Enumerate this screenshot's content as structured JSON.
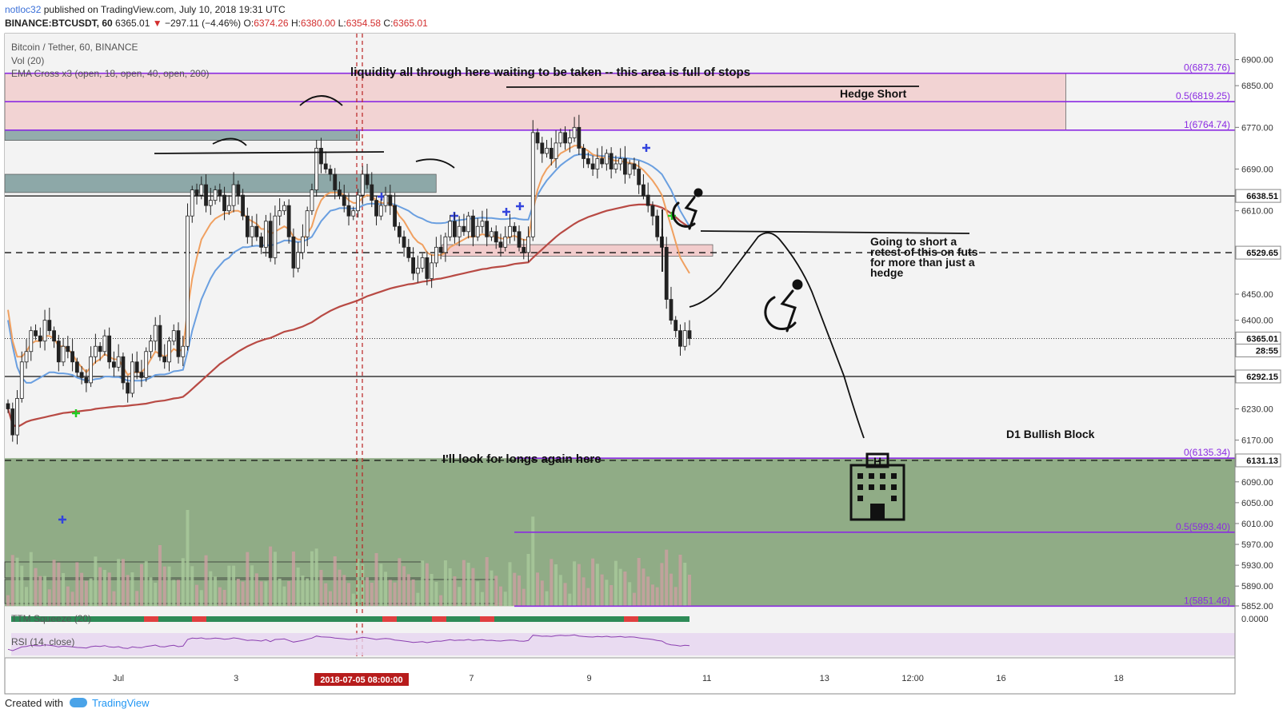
{
  "header": {
    "author": "notloc32",
    "published": "published on TradingView.com, July 10, 2018 19:31 UTC",
    "symbol": "BINANCE:BTCUSDT, 60",
    "last": "6365.01",
    "down_arrow": "▼",
    "change": "−297.11 (−4.46%)",
    "open_label": "O:",
    "open": "6374.26",
    "high_label": "H:",
    "high": "6380.00",
    "low_label": "L:",
    "low": "6354.58",
    "close_label": "C:",
    "close": "6365.01"
  },
  "legend": {
    "pair": "Bitcoin / Tether, 60, BINANCE",
    "vol": "Vol (20)",
    "ema": "EMA Cross x3 (open, 18, open, 40, open, 200)",
    "ttm": "TTM Squeeze (20)",
    "rsi": "RSI (14, close)"
  },
  "annotations": {
    "liquidity": "liquidity all through here waiting to be taken -- this area is full of stops",
    "hedge_short": "Hedge Short",
    "going_short": [
      "Going to short a",
      "retest of this on futs",
      "for more than just a",
      "hedge"
    ],
    "bullish_block": "D1 Bullish Block",
    "longs": "I'll look for longs again here"
  },
  "footer": {
    "created": "Created with",
    "brand": "TradingView"
  },
  "colors": {
    "candle": "#222222",
    "ema18": "#f0a060",
    "ema40": "#6a9fe0",
    "ema200": "#b84a44",
    "fib": "#8b2be2",
    "green_zone": "#8aa880",
    "pink_zone": "#f2c8c8",
    "teal_zone": "#7a9a9a",
    "volume": "#8aa880",
    "rsi_band": "#e6d4f0"
  },
  "chart_data": {
    "type": "candlestick",
    "symbol": "BINANCE:BTCUSDT",
    "ylim": [
      5852,
      6930
    ],
    "y_ticks": [
      5852,
      5890,
      5930,
      5970,
      6010,
      6050,
      6090,
      6130,
      6170,
      6230,
      6290,
      6350,
      6400,
      6450,
      6530,
      6610,
      6690,
      6770,
      6850,
      6900
    ],
    "y_tick_labels": [
      "5852.00",
      "5890.00",
      "5930.00",
      "5970.00",
      "6010.00",
      "6050.00",
      "6090.00",
      "6130.00",
      "6170.00",
      "6230.00",
      "6290.00",
      "6350.00",
      "6400.00",
      "6450.00",
      "6530.00",
      "6610.00",
      "6690.00",
      "6770.00",
      "6850.00",
      "6900.00"
    ],
    "x_ticks": [
      {
        "label": "Jul",
        "day": 1
      },
      {
        "label": "3",
        "day": 3
      },
      {
        "label": "7",
        "day": 7
      },
      {
        "label": "9",
        "day": 9
      },
      {
        "label": "11",
        "day": 11
      },
      {
        "label": "13",
        "day": 13
      },
      {
        "label": "12:00",
        "day": 14.5
      },
      {
        "label": "16",
        "day": 16
      },
      {
        "label": "18",
        "day": 18
      }
    ],
    "cursor_date": "2018-07-05 08:00:00",
    "price_tags": [
      {
        "label": "6638.51",
        "value": 6638.51
      },
      {
        "label": "6529.65",
        "value": 6529.65
      },
      {
        "label": "6365.01",
        "value": 6365.01
      },
      {
        "label": "28:55",
        "value": 6342
      },
      {
        "label": "6292.15",
        "value": 6292.15
      },
      {
        "label": "6131.13",
        "value": 6131.13
      }
    ],
    "levels": {
      "solid": [
        6638.51,
        6292.15
      ],
      "dashed": [
        6529.65,
        6131.13
      ],
      "dotted": [
        6365.01
      ]
    },
    "fib_top": [
      {
        "label": "0(6873.76)",
        "value": 6873.76
      },
      {
        "label": "0.5(6819.25)",
        "value": 6819.25
      },
      {
        "label": "1(6764.74)",
        "value": 6764.74
      }
    ],
    "fib_bottom": [
      {
        "label": "0(6135.34)",
        "value": 6135.34
      },
      {
        "label": "0.5(5993.40)",
        "value": 5993.4
      },
      {
        "label": "1(5851.46)",
        "value": 5851.46
      }
    ],
    "zones": [
      {
        "name": "liquidity",
        "top": 6873.76,
        "bottom": 6764.74,
        "from": 0,
        "to": 17.1
      },
      {
        "name": "teal-top",
        "top": 6765,
        "bottom": 6745,
        "from": 0,
        "to": 5.1
      },
      {
        "name": "teal-mid",
        "top": 6680,
        "bottom": 6645,
        "from": 0,
        "to": 6.4
      },
      {
        "name": "retest",
        "top": 6545,
        "bottom": 6523,
        "from": 6.5,
        "to": 11.1
      },
      {
        "name": "bullish-block",
        "top": 6135.34,
        "bottom": 5851.46,
        "from": 0,
        "to": 20.3
      }
    ],
    "candles_close": [
      6230,
      6180,
      6250,
      6320,
      6340,
      6380,
      6370,
      6360,
      6400,
      6380,
      6360,
      6320,
      6350,
      6340,
      6320,
      6300,
      6290,
      6280,
      6330,
      6350,
      6340,
      6370,
      6320,
      6310,
      6330,
      6280,
      6260,
      6320,
      6300,
      6290,
      6340,
      6360,
      6390,
      6330,
      6320,
      6360,
      6380,
      6330,
      6350,
      6600,
      6650,
      6640,
      6660,
      6620,
      6630,
      6650,
      6640,
      6610,
      6620,
      6660,
      6640,
      6600,
      6560,
      6580,
      6560,
      6540,
      6590,
      6520,
      6600,
      6610,
      6620,
      6560,
      6500,
      6530,
      6560,
      6610,
      6650,
      6730,
      6700,
      6690,
      6680,
      6650,
      6640,
      6620,
      6600,
      6610,
      6640,
      6680,
      6660,
      6630,
      6600,
      6620,
      6640,
      6620,
      6580,
      6560,
      6540,
      6520,
      6490,
      6500,
      6520,
      6480,
      6510,
      6540,
      6530,
      6560,
      6590,
      6560,
      6580,
      6570,
      6600,
      6560,
      6580,
      6590,
      6560,
      6570,
      6550,
      6540,
      6560,
      6580,
      6570,
      6540,
      6530,
      6560,
      6760,
      6740,
      6720,
      6730,
      6710,
      6740,
      6760,
      6740,
      6750,
      6770,
      6730,
      6710,
      6700,
      6690,
      6710,
      6700,
      6720,
      6690,
      6700,
      6710,
      6680,
      6700,
      6690,
      6660,
      6640,
      6620,
      6600,
      6560,
      6540,
      6440,
      6400,
      6380,
      6350,
      6380,
      6365
    ],
    "ema18": [
      6420,
      6360,
      6330,
      6330,
      6340,
      6355,
      6360,
      6360,
      6370,
      6370,
      6365,
      6350,
      6350,
      6345,
      6335,
      6320,
      6310,
      6300,
      6310,
      6320,
      6325,
      6335,
      6330,
      6325,
      6325,
      6310,
      6295,
      6300,
      6300,
      6300,
      6310,
      6325,
      6340,
      6335,
      6330,
      6335,
      6345,
      6340,
      6345,
      6420,
      6480,
      6520,
      6555,
      6570,
      6585,
      6595,
      6600,
      6605,
      6605,
      6610,
      6610,
      6605,
      6595,
      6590,
      6585,
      6575,
      6575,
      6565,
      6570,
      6575,
      6580,
      6575,
      6560,
      6555,
      6555,
      6565,
      6580,
      6610,
      6630,
      6640,
      6645,
      6645,
      6645,
      6640,
      6630,
      6625,
      6625,
      6635,
      6640,
      6638,
      6630,
      6625,
      6625,
      6625,
      6615,
      6600,
      6590,
      6575,
      6560,
      6550,
      6545,
      6530,
      6525,
      6525,
      6525,
      6530,
      6540,
      6545,
      6550,
      6555,
      6560,
      6560,
      6562,
      6565,
      6563,
      6562,
      6560,
      6557,
      6556,
      6560,
      6562,
      6558,
      6554,
      6555,
      6610,
      6650,
      6675,
      6690,
      6700,
      6710,
      6720,
      6725,
      6730,
      6735,
      6735,
      6730,
      6725,
      6718,
      6715,
      6712,
      6712,
      6708,
      6706,
      6706,
      6703,
      6702,
      6700,
      6695,
      6688,
      6678,
      6668,
      6655,
      6640,
      6610,
      6580,
      6550,
      6520,
      6505,
      6490
    ],
    "ema40": [
      6400,
      6350,
      6310,
      6290,
      6280,
      6280,
      6285,
      6290,
      6295,
      6300,
      6300,
      6298,
      6298,
      6297,
      6295,
      6290,
      6287,
      6284,
      6285,
      6287,
      6288,
      6292,
      6292,
      6291,
      6291,
      6288,
      6284,
      6284,
      6284,
      6284,
      6286,
      6290,
      6295,
      6296,
      6296,
      6298,
      6302,
      6303,
      6305,
      6340,
      6380,
      6410,
      6440,
      6460,
      6480,
      6495,
      6505,
      6515,
      6520,
      6530,
      6535,
      6540,
      6540,
      6542,
      6543,
      6542,
      6545,
      6543,
      6546,
      6549,
      6553,
      6553,
      6551,
      6550,
      6551,
      6555,
      6560,
      6575,
      6590,
      6600,
      6610,
      6612,
      6615,
      6615,
      6615,
      6614,
      6615,
      6620,
      6623,
      6624,
      6623,
      6623,
      6624,
      6624,
      6622,
      6618,
      6614,
      6610,
      6603,
      6598,
      6595,
      6590,
      6587,
      6586,
      6586,
      6587,
      6590,
      6591,
      6592,
      6593,
      6595,
      6595,
      6596,
      6597,
      6596,
      6596,
      6595,
      6594,
      6594,
      6595,
      6596,
      6594,
      6593,
      6593,
      6620,
      6640,
      6655,
      6668,
      6678,
      6688,
      6697,
      6704,
      6710,
      6716,
      6718,
      6718,
      6718,
      6716,
      6716,
      6715,
      6715,
      6713,
      6712,
      6712,
      6711,
      6710,
      6709,
      6707,
      6704,
      6700,
      6695,
      6688,
      6680,
      6665,
      6650,
      6630,
      6610,
      6595,
      6580
    ],
    "ema200": [
      6230,
      6200,
      6195,
      6200,
      6205,
      6208,
      6210,
      6212,
      6214,
      6216,
      6218,
      6220,
      6222,
      6223,
      6224,
      6225,
      6226,
      6227,
      6228,
      6230,
      6231,
      6232,
      6233,
      6234,
      6235,
      6235,
      6236,
      6237,
      6238,
      6239,
      6240,
      6242,
      6244,
      6245,
      6246,
      6248,
      6250,
      6251,
      6253,
      6260,
      6268,
      6276,
      6284,
      6292,
      6300,
      6308,
      6316,
      6322,
      6328,
      6334,
      6340,
      6345,
      6350,
      6354,
      6358,
      6361,
      6364,
      6366,
      6370,
      6374,
      6378,
      6380,
      6382,
      6385,
      6388,
      6392,
      6396,
      6402,
      6408,
      6413,
      6418,
      6422,
      6426,
      6429,
      6432,
      6435,
      6438,
      6442,
      6446,
      6449,
      6452,
      6455,
      6458,
      6461,
      6463,
      6465,
      6467,
      6469,
      6470,
      6472,
      6474,
      6475,
      6477,
      6479,
      6480,
      6482,
      6484,
      6486,
      6488,
      6490,
      6492,
      6494,
      6496,
      6498,
      6499,
      6501,
      6502,
      6503,
      6504,
      6506,
      6508,
      6509,
      6510,
      6511,
      6520,
      6528,
      6536,
      6544,
      6552,
      6560,
      6567,
      6573,
      6579,
      6585,
      6590,
      6594,
      6598,
      6601,
      6604,
      6607,
      6610,
      6612,
      6614,
      6616,
      6618,
      6620,
      6621,
      6622,
      6622,
      6622,
      6621,
      6619,
      6616,
      6611,
      6605,
      6598,
      6590,
      6584,
      6578
    ]
  }
}
